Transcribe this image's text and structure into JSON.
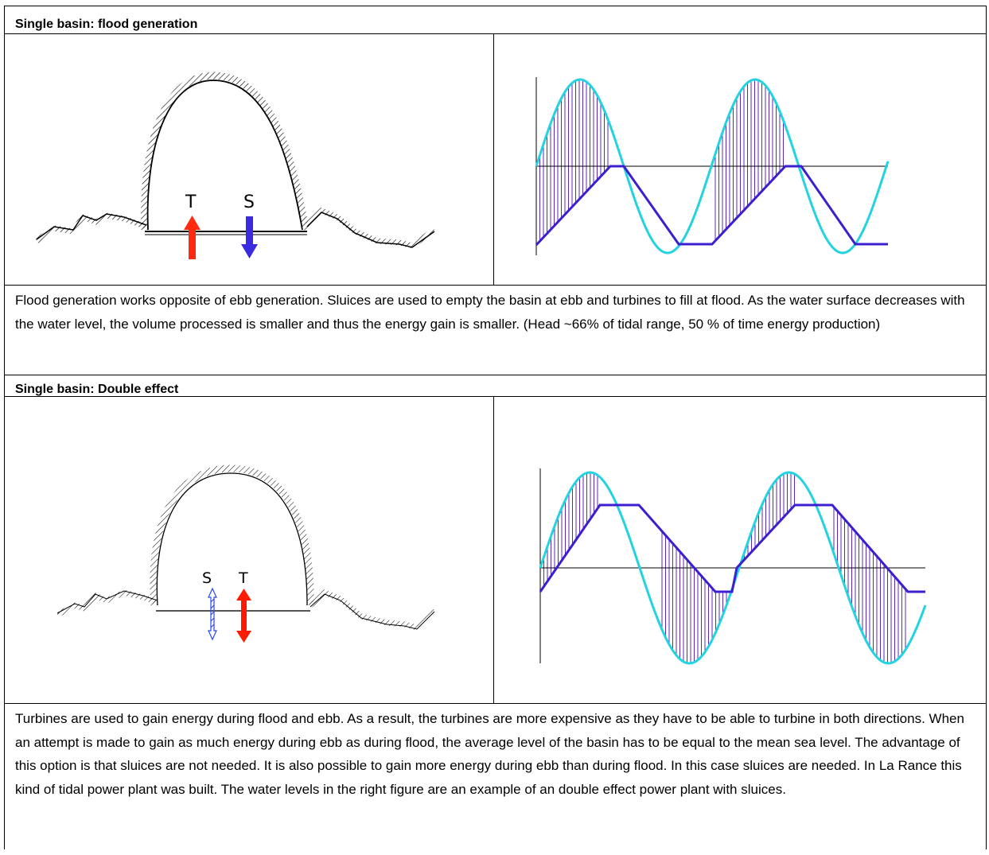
{
  "sections": [
    {
      "heading": "Single basin: flood generation",
      "diagram_labels": {
        "turbine": "T",
        "sluice": "S"
      },
      "text": "Flood generation works opposite of ebb generation. Sluices are used to empty the basin at ebb and turbines to fill at flood. As the water surface decreases with the water level, the volume processed is smaller and thus the energy gain is smaller. (Head ~66% of tidal range, 50 % of time energy production)"
    },
    {
      "heading": "Single basin: Double effect",
      "diagram_labels": {
        "sluice": "S",
        "turbine": "T"
      },
      "text": "Turbines are used to gain energy during flood and ebb. As a result, the turbines are more expensive as they have to be able to turbine in both directions. When an attempt is made to gain as much energy during ebb as during flood, the average level of the basin has to be equal to the mean sea level. The advantage of this option is that sluices are not needed. It is also possible to gain more energy during ebb than during flood. In this case sluices are needed. In La Rance this kind of tidal power plant was built. The water levels in the right figure are an example of an double effect power plant with sluices."
    }
  ],
  "colors": {
    "tide_curve": "#22d3e0",
    "basin_level": "#3b1fd0",
    "hatch": "#4a10b0",
    "turbine_arrow": "#ff2a10",
    "sluice_arrow": "#3a2ae0",
    "sluice_arrow_light": "#2a4ae8"
  },
  "icons": {
    "turbine_flow": "arrow-up",
    "sluice_flow": "arrow-down",
    "bidirectional": "arrow-up-down"
  }
}
